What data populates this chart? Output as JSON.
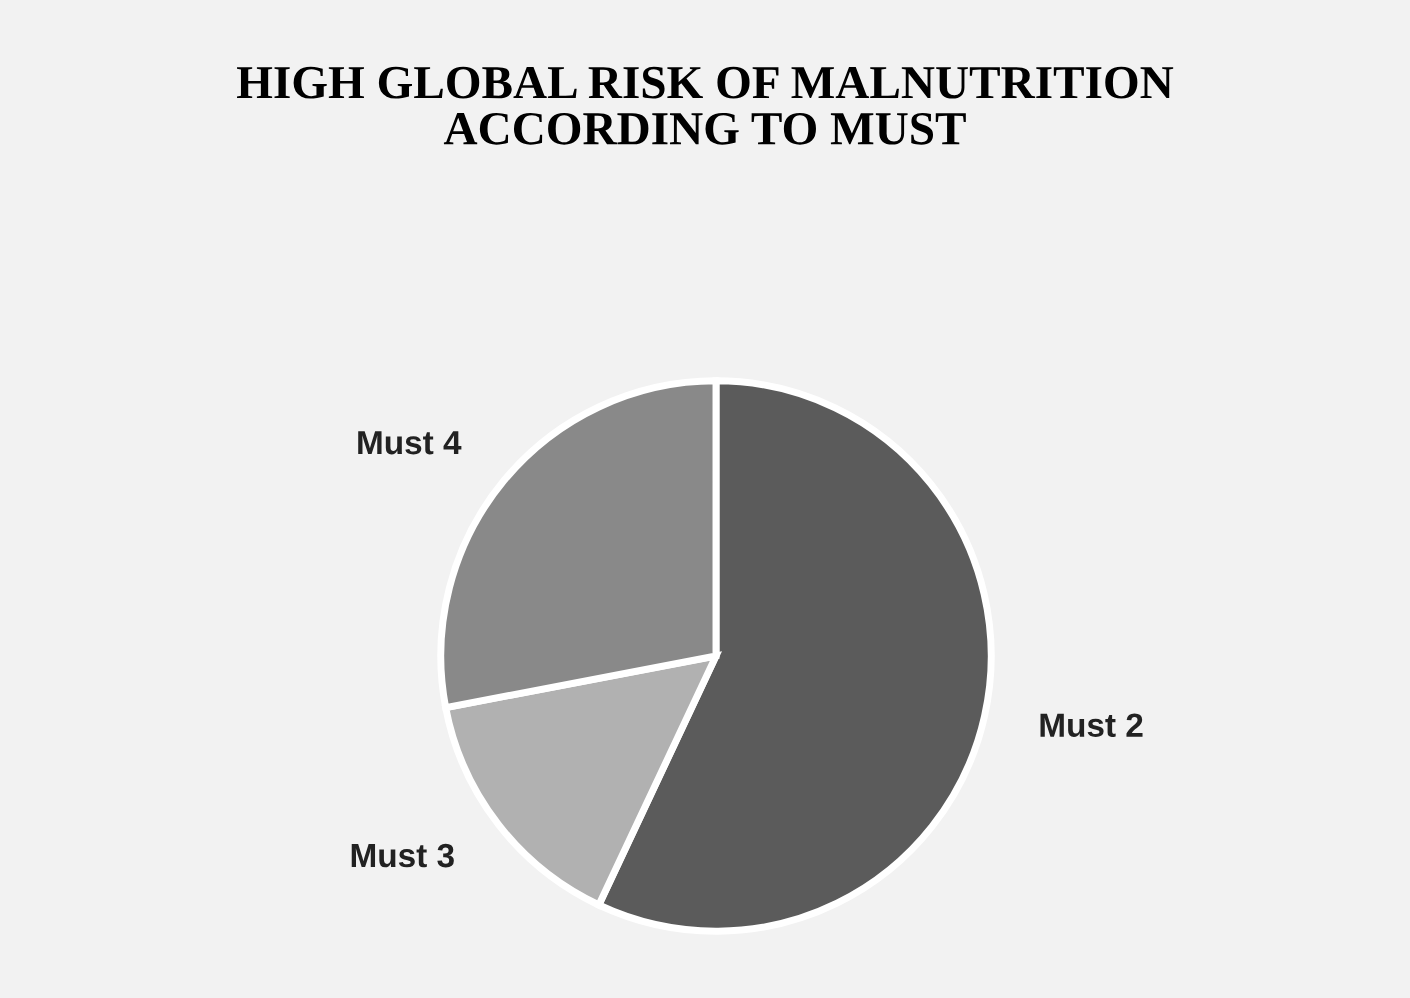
{
  "chart_data": {
    "type": "pie",
    "title": "HIGH GLOBAL RISK OF MALNUTRITION\nACCORDING TO MUST",
    "categories": [
      "Must 2",
      "Must 3",
      "Must 4"
    ],
    "values": [
      57,
      15,
      28
    ],
    "colors": [
      "#5b5b5b",
      "#b1b1b1",
      "#898989"
    ],
    "legend": false
  }
}
